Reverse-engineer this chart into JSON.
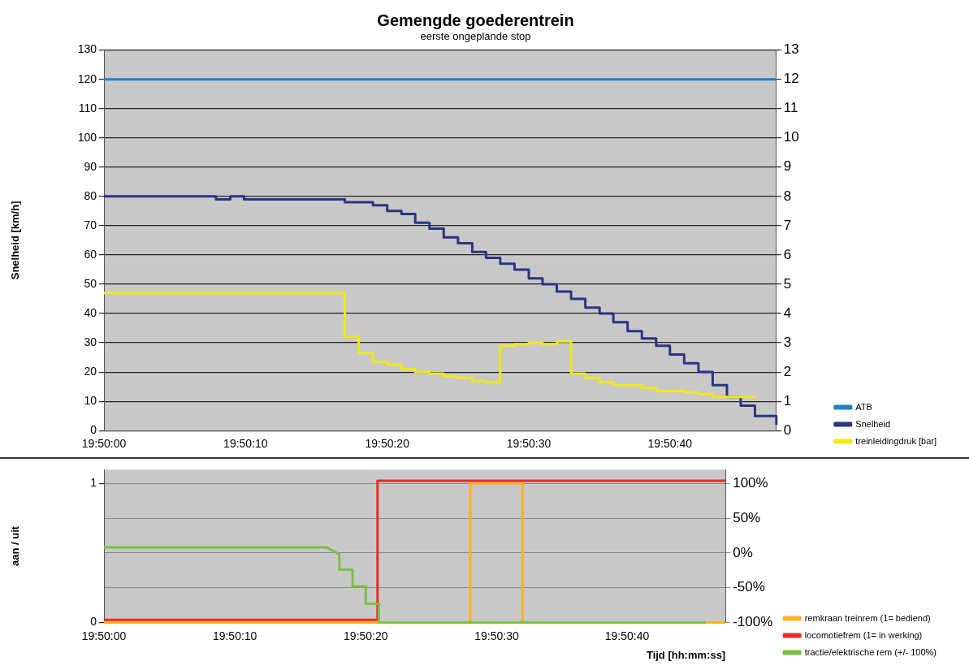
{
  "chart_data": [
    {
      "type": "step",
      "title": "Gemengde goederentrein",
      "subtitle": "eerste ongeplande stop",
      "ylabel": "Snelheid [km/h]",
      "xlim": [
        19.83333,
        19.84653
      ],
      "xticks": [
        {
          "value": 19.83333,
          "label": "19:50:00"
        },
        {
          "value": 19.83611,
          "label": "19:50:10"
        },
        {
          "value": 19.83889,
          "label": "19:50:20"
        },
        {
          "value": 19.84167,
          "label": "19:50:30"
        },
        {
          "value": 19.84444,
          "label": "19:50:40"
        }
      ],
      "ylim": [
        0,
        130
      ],
      "yticks": [
        0,
        10,
        20,
        30,
        40,
        50,
        60,
        70,
        80,
        90,
        100,
        110,
        120,
        130
      ],
      "y2lim": [
        0,
        13
      ],
      "y2ticks": [
        0,
        1,
        2,
        3,
        4,
        5,
        6,
        7,
        8,
        9,
        10,
        11,
        12,
        13
      ],
      "grid": "y",
      "legend": "bottom right",
      "series": [
        {
          "name": "ATB",
          "color": "#1f7fc4",
          "x": [
            19.83333,
            19.84653
          ],
          "values": [
            120,
            120
          ]
        },
        {
          "name": "Snelheid",
          "color": "#283583",
          "x": [
            19.83333,
            19.83553,
            19.83581,
            19.83608,
            19.83806,
            19.83861,
            19.83889,
            19.83917,
            19.83944,
            19.83972,
            19.84,
            19.84028,
            19.84056,
            19.84083,
            19.84111,
            19.84139,
            19.84167,
            19.84194,
            19.84222,
            19.8425,
            19.84278,
            19.84306,
            19.84333,
            19.84361,
            19.84389,
            19.84417,
            19.84444,
            19.84472,
            19.845,
            19.84528,
            19.84556,
            19.84583,
            19.84611,
            19.84653
          ],
          "values": [
            80,
            79,
            80,
            79,
            78,
            77,
            75,
            74,
            71,
            69,
            66,
            64,
            61,
            59,
            57,
            55,
            52,
            50,
            47.5,
            45,
            42,
            40,
            37,
            34,
            31.5,
            29,
            26,
            23,
            20,
            15.5,
            11.5,
            8.5,
            5,
            2
          ]
        },
        {
          "name": "treinleidingdruk [bar]",
          "color": "#f0e818",
          "axis": "y2",
          "x": [
            19.83333,
            19.83806,
            19.83833,
            19.83861,
            19.83889,
            19.83917,
            19.83944,
            19.83972,
            19.84,
            19.84028,
            19.84056,
            19.84083,
            19.84111,
            19.84139,
            19.84167,
            19.84194,
            19.84222,
            19.8425,
            19.84278,
            19.84306,
            19.84333,
            19.84389,
            19.84417,
            19.84472,
            19.845,
            19.84528,
            19.84611
          ],
          "values": [
            4.7,
            3.2,
            2.65,
            2.35,
            2.25,
            2.1,
            2.0,
            1.95,
            1.85,
            1.8,
            1.7,
            1.65,
            2.9,
            2.95,
            3.0,
            2.95,
            3.05,
            1.95,
            1.8,
            1.65,
            1.55,
            1.45,
            1.35,
            1.3,
            1.25,
            1.15,
            1.15
          ]
        }
      ]
    },
    {
      "type": "line",
      "ylabel": "aan / uit",
      "xlabel": "Tijd [hh:mm:ss]",
      "xlim": [
        19.83333,
        19.84653
      ],
      "xticks": [
        {
          "value": 19.83333,
          "label": "19:50:00"
        },
        {
          "value": 19.83611,
          "label": "19:50:10"
        },
        {
          "value": 19.83889,
          "label": "19:50:20"
        },
        {
          "value": 19.84167,
          "label": "19:50:30"
        },
        {
          "value": 19.84444,
          "label": "19:50:40"
        }
      ],
      "ylim": [
        0,
        1.1
      ],
      "yticks": [
        0,
        1
      ],
      "y2lim": [
        -100,
        120
      ],
      "y2ticks": [
        {
          "value": -100,
          "label": "-100%"
        },
        {
          "value": -50,
          "label": "-50%"
        },
        {
          "value": 0,
          "label": "0%"
        },
        {
          "value": 50,
          "label": "50%"
        },
        {
          "value": 100,
          "label": "100%"
        }
      ],
      "grid": "y",
      "legend": "bottom right",
      "series": [
        {
          "name": "remkraan treinrem (1= bediend)",
          "color": "#ffb21f",
          "x": [
            19.83333,
            19.84111,
            19.84111,
            19.84222,
            19.84222,
            19.84653
          ],
          "values": [
            0,
            0,
            1,
            1,
            0,
            0
          ]
        },
        {
          "name": "locomotiefrem (1= in werking)",
          "color": "#ee2a24",
          "x": [
            19.83333,
            19.83914,
            19.83914,
            19.84653
          ],
          "values": [
            0.02,
            0.02,
            1.02,
            1.02
          ]
        },
        {
          "name": "tractie/elektrische rem (+/- 100%)",
          "color": "#7ac143",
          "axis": "y2",
          "x": [
            19.83333,
            19.83806,
            19.83833,
            19.83833,
            19.83861,
            19.83861,
            19.83889,
            19.83889,
            19.83917,
            19.83917,
            19.84611
          ],
          "values": [
            8,
            8,
            -2,
            -24,
            -24,
            -48,
            -48,
            -73,
            -73,
            -100,
            -100
          ]
        }
      ]
    }
  ]
}
